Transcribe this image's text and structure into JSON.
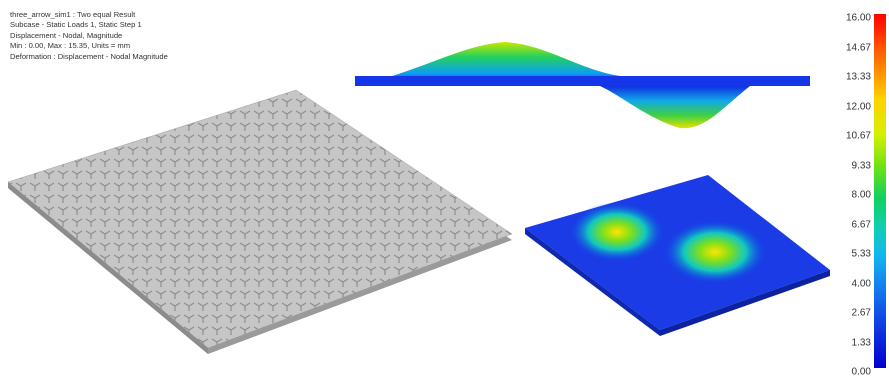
{
  "result_info": {
    "line1": "three_arrow_sim1 : Two equal Result",
    "line2": "Subcase - Static Loads 1, Static Step 1",
    "line3": "Displacement - Nodal, Magnitude",
    "line4": "Min : 0.00, Max : 15.35, Units = mm",
    "line5": "Deformation : Displacement - Nodal Magnitude"
  },
  "legend": {
    "ticks": [
      "16.00",
      "14.67",
      "13.33",
      "12.00",
      "10.67",
      "9.33",
      "8.00",
      "6.67",
      "5.33",
      "4.00",
      "2.67",
      "1.33",
      "0.00"
    ]
  },
  "colors": {
    "background": "#ffffff",
    "undeformed_plate": "#b8b8b8",
    "low_displacement": "#0000d0",
    "high_displacement": "#ff0000"
  }
}
